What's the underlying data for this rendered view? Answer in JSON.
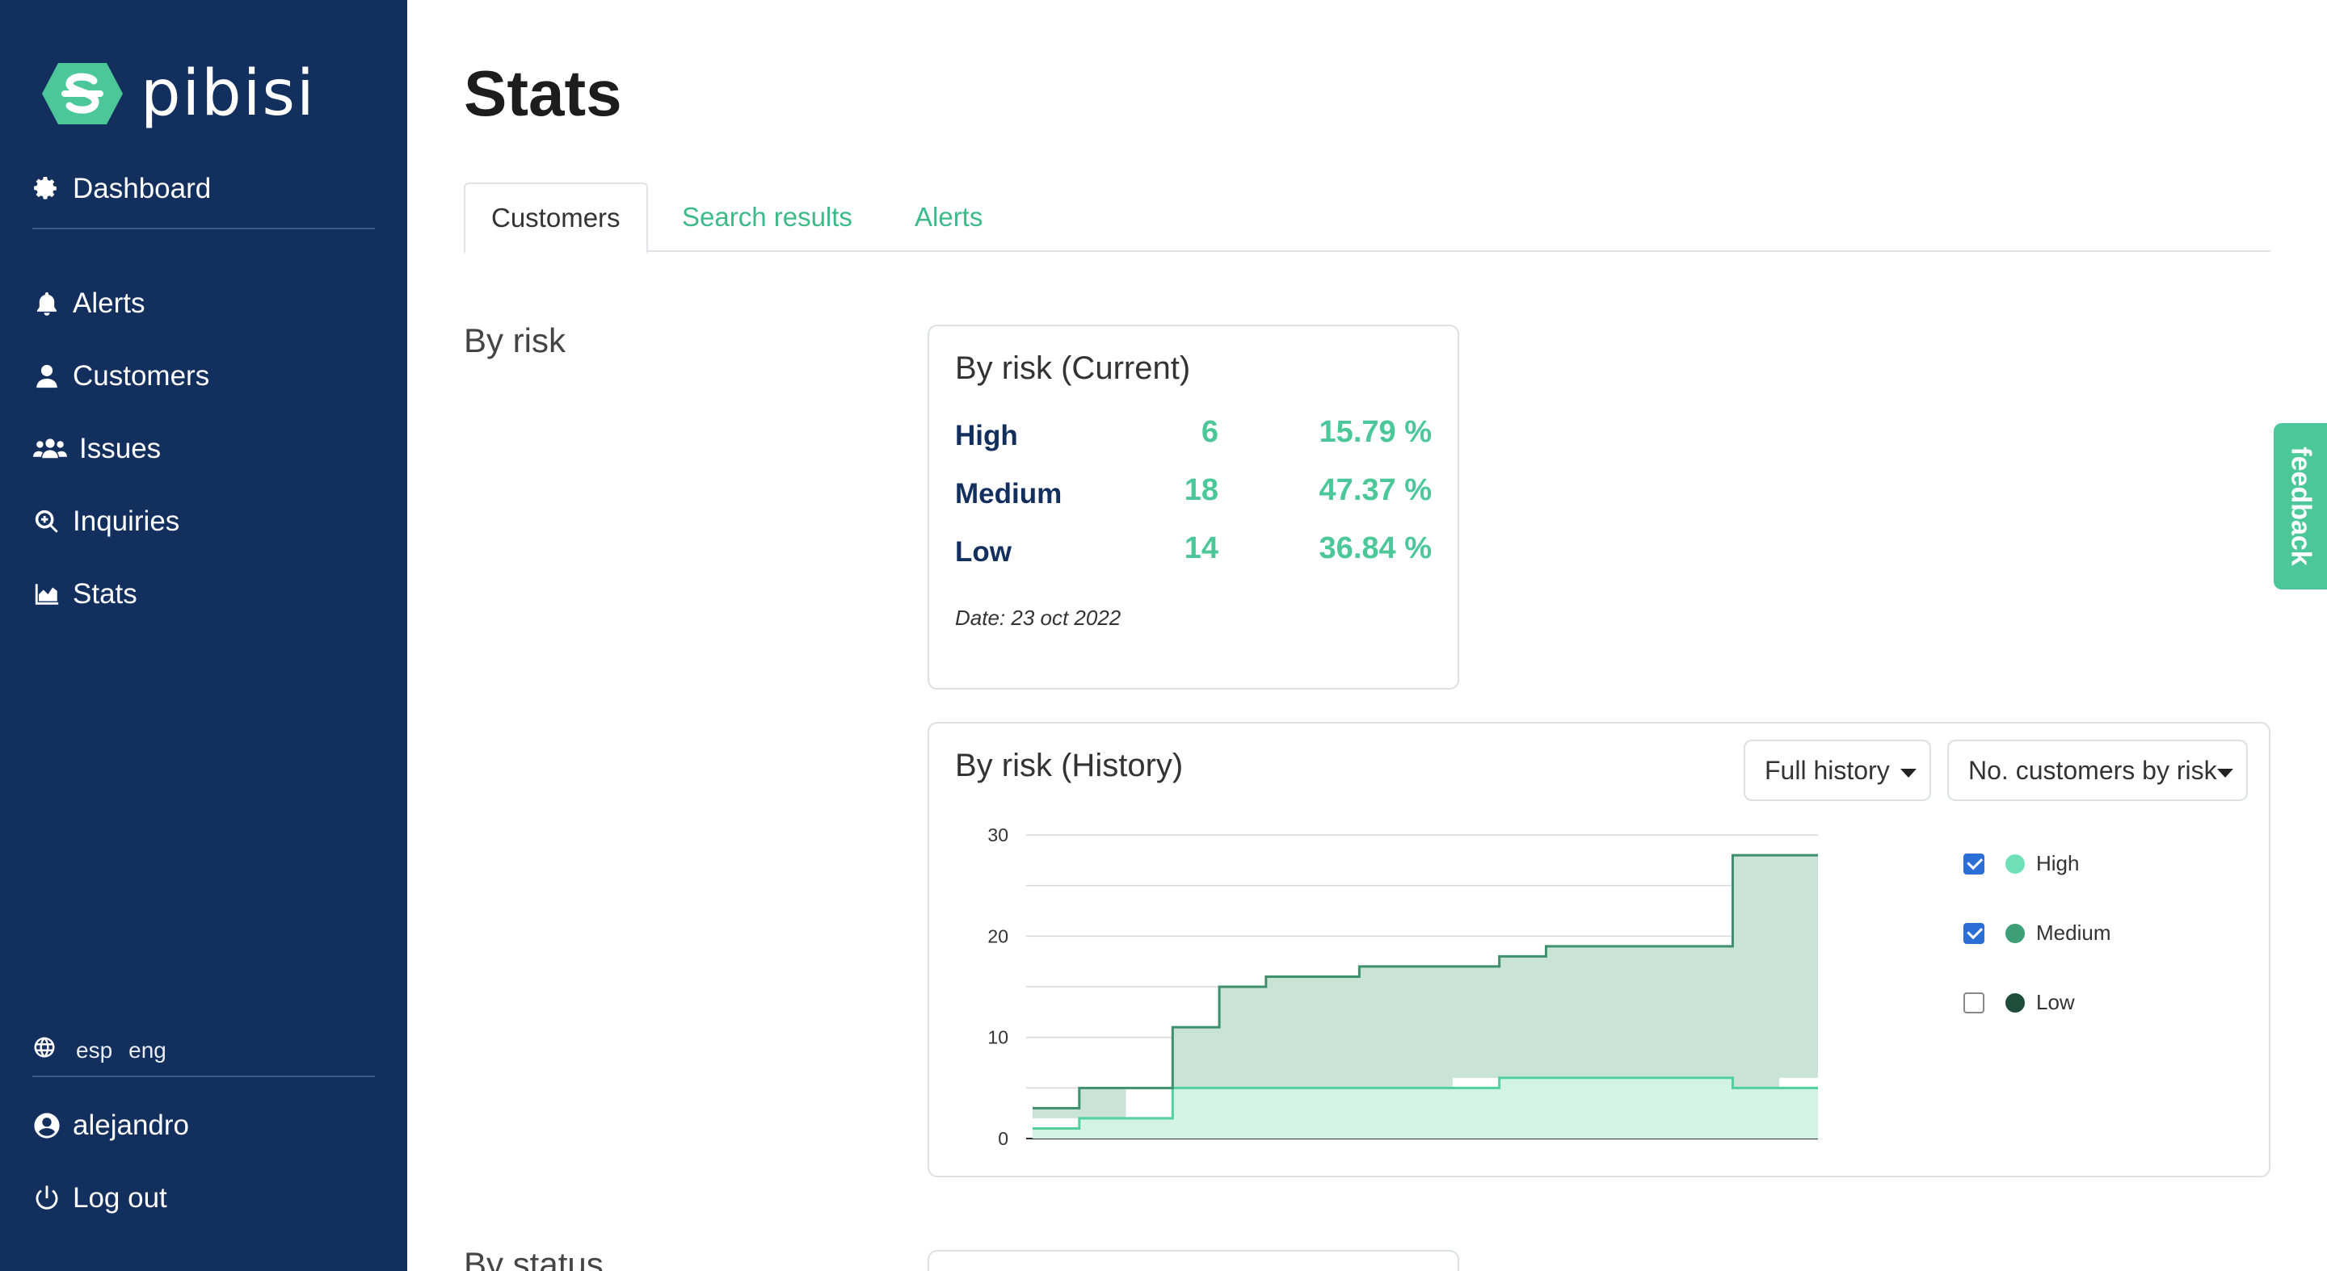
{
  "brand": {
    "name": "pibisi",
    "accent": "#4cc79a",
    "sidebar_bg": "#132f5e"
  },
  "sidebar": {
    "top_item": {
      "label": "Dashboard",
      "icon": "gear-icon"
    },
    "items": [
      {
        "label": "Alerts",
        "icon": "bell-icon"
      },
      {
        "label": "Customers",
        "icon": "user-icon"
      },
      {
        "label": "Issues",
        "icon": "users-icon"
      },
      {
        "label": "Inquiries",
        "icon": "search-plus-icon"
      },
      {
        "label": "Stats",
        "icon": "area-chart-icon"
      }
    ],
    "languages": [
      "esp",
      "eng"
    ],
    "user": "alejandro",
    "logout": "Log out"
  },
  "page": {
    "title": "Stats"
  },
  "tabs": [
    {
      "label": "Customers",
      "active": true
    },
    {
      "label": "Search results",
      "active": false
    },
    {
      "label": "Alerts",
      "active": false
    }
  ],
  "sections": {
    "by_risk": "By risk",
    "by_status": "By status"
  },
  "current_card": {
    "title": "By risk (Current)",
    "rows": [
      {
        "name": "High",
        "count": "6",
        "pct": "15.79 %"
      },
      {
        "name": "Medium",
        "count": "18",
        "pct": "47.37 %"
      },
      {
        "name": "Low",
        "count": "14",
        "pct": "36.84 %"
      }
    ],
    "date": "Date: 23 oct 2022"
  },
  "history_card": {
    "title": "By risk (History)",
    "period_select": "Full history",
    "metric_select": "No. customers by risk",
    "legend": [
      {
        "name": "High",
        "checked": true,
        "color": "#6fe0b8"
      },
      {
        "name": "Medium",
        "checked": true,
        "color": "#3e9e78"
      },
      {
        "name": "Low",
        "checked": false,
        "color": "#1e4d3c"
      }
    ]
  },
  "chart_data": {
    "type": "area",
    "stacked": true,
    "step": true,
    "yticks": [
      "0",
      "10",
      "20",
      "30"
    ],
    "ylim": [
      0,
      30
    ],
    "x": [
      0,
      1,
      2,
      3,
      4,
      5,
      6,
      7,
      8,
      9,
      10,
      11,
      12,
      13,
      14,
      15,
      16,
      17
    ],
    "series": [
      {
        "name": "High",
        "color": "#6fe0b8",
        "values": [
          1,
          2,
          2,
          5,
          5,
          5,
          5,
          5,
          5,
          5,
          6,
          6,
          6,
          6,
          6,
          5,
          5,
          6
        ]
      },
      {
        "name": "Medium",
        "color": "#3e9e78",
        "values": [
          2,
          3,
          3,
          6,
          10,
          11,
          11,
          12,
          12,
          12,
          12,
          13,
          13,
          13,
          13,
          23,
          23,
          24
        ]
      }
    ],
    "legend_position": "right",
    "grid": true
  },
  "feedback": "feedback"
}
